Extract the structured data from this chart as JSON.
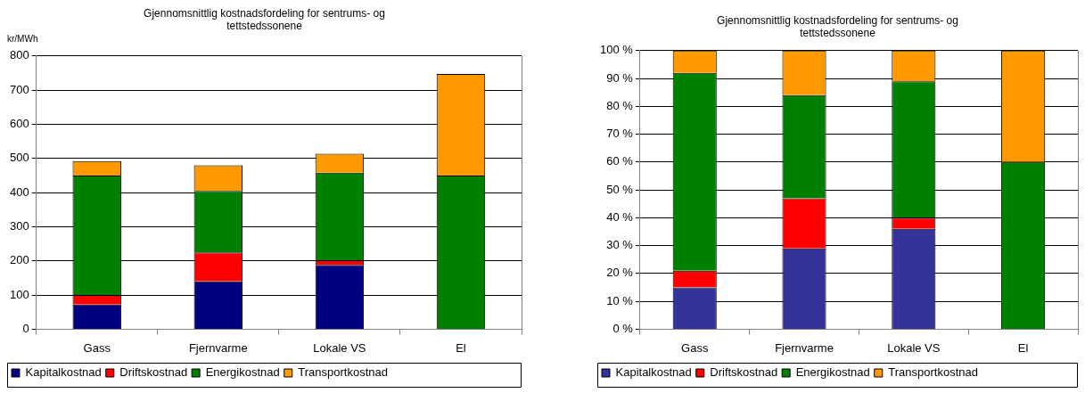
{
  "chart_data": [
    {
      "type": "bar",
      "title": "Gjennomsnittlig kostnadsfordeling for sentrums- og tettstedssonene",
      "ylabel": "kr/MWh",
      "categories": [
        "Gass",
        "Fjernvarme",
        "Lokale VS",
        "El"
      ],
      "stacked": true,
      "ylim": [
        0,
        800
      ],
      "yticks": [
        0,
        100,
        200,
        300,
        400,
        500,
        600,
        700,
        800
      ],
      "grid": "y",
      "legend": "bottom",
      "series": [
        {
          "name": "Kapitalkostnad",
          "color": "#000080",
          "values": [
            72,
            140,
            188,
            0
          ]
        },
        {
          "name": "Driftskostnad",
          "color": "#ff0000",
          "values": [
            28,
            85,
            14,
            0
          ]
        },
        {
          "name": "Energikostnad",
          "color": "#008000",
          "values": [
            350,
            180,
            256,
            450
          ]
        },
        {
          "name": "Transportkostnad",
          "color": "#ff9900",
          "values": [
            42,
            75,
            56,
            297
          ]
        }
      ]
    },
    {
      "type": "bar",
      "title": "Gjennomsnittlig kostnadsfordeling for sentrums- og tettstedssonene",
      "categories": [
        "Gass",
        "Fjernvarme",
        "Lokale VS",
        "El"
      ],
      "stacked": true,
      "ylim": [
        0,
        100
      ],
      "yticks": [
        {
          "value": 0,
          "label": "0 %"
        },
        {
          "value": 10,
          "label": "10 %"
        },
        {
          "value": 20,
          "label": "20 %"
        },
        {
          "value": 30,
          "label": "30 %"
        },
        {
          "value": 40,
          "label": "40 %"
        },
        {
          "value": 50,
          "label": "50 %"
        },
        {
          "value": 60,
          "label": "60 %"
        },
        {
          "value": 70,
          "label": "70 %"
        },
        {
          "value": 80,
          "label": "80 %"
        },
        {
          "value": 90,
          "label": "90 %"
        },
        {
          "value": 100,
          "label": "100 %"
        }
      ],
      "grid": "y",
      "legend": "bottom",
      "series": [
        {
          "name": "Kapitalkostnad",
          "color": "#333399",
          "values": [
            15,
            29,
            36,
            0
          ]
        },
        {
          "name": "Driftskostnad",
          "color": "#ff0000",
          "values": [
            6,
            18,
            4,
            0
          ]
        },
        {
          "name": "Energikostnad",
          "color": "#008000",
          "values": [
            71,
            37,
            49,
            60
          ]
        },
        {
          "name": "Transportkostnad",
          "color": "#ff9900",
          "values": [
            8,
            16,
            11,
            40
          ]
        }
      ]
    }
  ]
}
